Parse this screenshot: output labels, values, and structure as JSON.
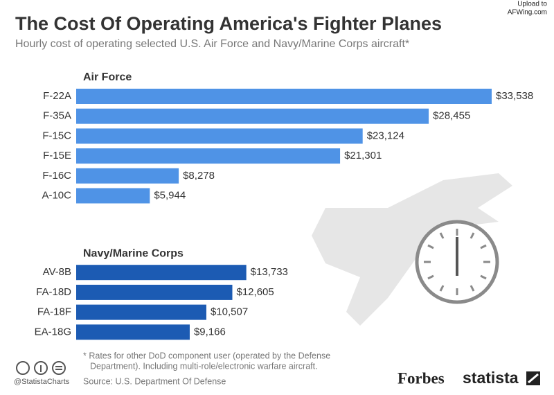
{
  "chart_data": {
    "type": "bar",
    "title": "The Cost Of Operating America's Fighter Planes",
    "subtitle": "Hourly cost of operating selected U.S. Air Force and Navy/Marine Corps aircraft*",
    "groups": [
      {
        "name": "Air Force",
        "color": "#4f93e6",
        "categories": [
          "F-22A",
          "F-35A",
          "F-15C",
          "F-15E",
          "F-16C",
          "A-10C"
        ],
        "values": [
          33538,
          28455,
          23124,
          21301,
          8278,
          5944
        ],
        "value_labels": [
          "$33,538",
          "$28,455",
          "$23,124",
          "$21,301",
          "$8,278",
          "$5,944"
        ]
      },
      {
        "name": "Navy/Marine Corps",
        "color": "#1c5bb3",
        "categories": [
          "AV-8B",
          "FA-18D",
          "FA-18F",
          "EA-18G"
        ],
        "values": [
          13733,
          12605,
          10507,
          9166
        ],
        "value_labels": [
          "$13,733",
          "$12,605",
          "$10,507",
          "$9,166"
        ]
      }
    ],
    "footnote": [
      "* Rates for other DoD component user (operated by the Defense",
      "Department). Including multi-role/electronic warfare aircraft."
    ],
    "source": "Source: U.S. Department Of Defense",
    "credit": "@StatistaCharts",
    "brands": [
      "Forbes",
      "statista"
    ],
    "watermark": [
      "Upload to",
      "AFWing.com"
    ]
  }
}
